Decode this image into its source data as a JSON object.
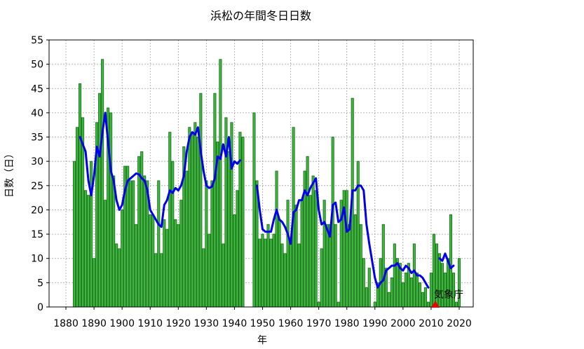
{
  "chart_data": {
    "type": "bar",
    "title": "浜松の年間冬日日数",
    "xlabel": "年",
    "ylabel": "日数（日）",
    "source_label": "気象庁",
    "xlim": [
      1874,
      2025
    ],
    "ylim": [
      0,
      55
    ],
    "x_ticks": [
      1880,
      1890,
      1900,
      1910,
      1920,
      1930,
      1940,
      1950,
      1960,
      1970,
      1980,
      1990,
      2000,
      2010,
      2020
    ],
    "y_ticks": [
      0,
      5,
      10,
      15,
      20,
      25,
      30,
      35,
      40,
      45,
      50,
      55
    ],
    "grid": true,
    "colors": {
      "bar": "#3fb53f",
      "bar_edge": "#166e16",
      "moving_average": "#0000ee",
      "source_marker": "#ee0000"
    },
    "series": [
      {
        "kind": "bar",
        "x": [
          1883,
          1884,
          1885,
          1886,
          1887,
          1888,
          1889,
          1890,
          1891,
          1892,
          1893,
          1894,
          1895,
          1896,
          1897,
          1898,
          1899,
          1900,
          1901,
          1902,
          1903,
          1904,
          1905,
          1906,
          1907,
          1908,
          1909,
          1910,
          1911,
          1912,
          1913,
          1914,
          1915,
          1916,
          1917,
          1918,
          1919,
          1920,
          1921,
          1922,
          1923,
          1924,
          1925,
          1926,
          1927,
          1928,
          1929,
          1930,
          1931,
          1932,
          1933,
          1934,
          1935,
          1936,
          1937,
          1938,
          1939,
          1940,
          1941,
          1942,
          1943,
          1944,
          1945,
          1946,
          1947,
          1948,
          1949,
          1950,
          1951,
          1952,
          1953,
          1954,
          1955,
          1956,
          1957,
          1958,
          1959,
          1960,
          1961,
          1962,
          1963,
          1964,
          1965,
          1966,
          1967,
          1968,
          1969,
          1970,
          1971,
          1972,
          1973,
          1974,
          1975,
          1976,
          1977,
          1978,
          1979,
          1980,
          1981,
          1982,
          1983,
          1984,
          1985,
          1986,
          1987,
          1988,
          1989,
          1990,
          1991,
          1992,
          1993,
          1994,
          1995,
          1996,
          1997,
          1998,
          1999,
          2000,
          2001,
          2002,
          2003,
          2004,
          2005,
          2006,
          2007,
          2008,
          2009,
          2010,
          2011,
          2012,
          2013,
          2014,
          2015,
          2016,
          2017,
          2018,
          2019,
          2020
        ],
        "values": [
          30,
          37,
          46,
          39,
          24,
          23,
          30,
          10,
          38,
          44,
          51,
          22,
          41,
          40,
          27,
          13,
          12,
          20,
          29,
          29,
          26,
          26,
          17,
          31,
          32,
          27,
          26,
          19,
          19,
          11,
          26,
          11,
          18,
          16,
          36,
          30,
          18,
          17,
          22,
          33,
          28,
          37,
          36,
          38,
          35,
          44,
          12,
          26,
          15,
          26,
          44,
          34,
          51,
          13,
          39,
          32,
          38,
          19,
          24,
          36,
          35,
          0,
          0,
          0,
          40,
          26,
          14,
          15,
          14,
          17,
          14,
          15,
          28,
          18,
          13,
          11,
          22,
          14,
          37,
          21,
          13,
          22,
          28,
          31,
          23,
          27,
          24,
          1,
          12,
          22,
          17,
          17,
          35,
          17,
          1,
          22,
          24,
          24,
          17,
          43,
          19,
          30,
          17,
          10,
          4,
          8,
          0,
          1,
          5,
          10,
          17,
          8,
          3,
          6,
          13,
          10,
          9,
          5,
          7,
          9,
          6,
          13,
          7,
          5,
          3,
          4,
          1,
          7,
          15,
          13,
          11,
          9,
          7,
          10,
          19,
          7,
          1,
          10
        ]
      },
      {
        "kind": "line",
        "x": [
          1885,
          1887,
          1888,
          1889,
          1890,
          1891,
          1892,
          1893,
          1894,
          1895,
          1896,
          1897,
          1898,
          1899,
          1900,
          1901,
          1902,
          1903,
          1904,
          1905,
          1906,
          1907,
          1908,
          1909,
          1910,
          1911,
          1912,
          1913,
          1914,
          1915,
          1916,
          1917,
          1918,
          1919,
          1920,
          1921,
          1922,
          1923,
          1924,
          1925,
          1926,
          1927,
          1928,
          1929,
          1930,
          1931,
          1932,
          1933,
          1934,
          1935,
          1936,
          1937,
          1938,
          1939,
          1940,
          1941,
          1942
        ],
        "values": [
          35,
          32,
          26,
          23,
          27,
          33,
          31,
          36,
          40,
          34,
          28,
          26,
          22,
          20,
          21,
          24,
          26,
          26.5,
          27,
          27.5,
          27.3,
          26.5,
          26,
          24,
          20,
          19,
          18,
          17,
          16.5,
          21,
          22,
          24,
          23.5,
          24.5,
          24,
          25,
          27,
          32,
          35,
          36,
          35.5,
          37,
          32,
          28,
          25,
          24.5,
          24.8,
          26.5,
          31,
          30.5,
          33.5,
          31,
          35,
          28.5,
          30,
          29.5,
          30.2
        ]
      },
      {
        "kind": "line",
        "x": [
          1948,
          1949,
          1950,
          1951,
          1952,
          1953,
          1954,
          1955,
          1956,
          1957,
          1958,
          1959,
          1960,
          1961,
          1962,
          1963,
          1964,
          1965,
          1966,
          1967,
          1968,
          1969,
          1970,
          1971,
          1972,
          1973,
          1974,
          1975,
          1976,
          1977,
          1978,
          1979,
          1980,
          1981,
          1982,
          1983,
          1984,
          1985,
          1986,
          1987,
          1988,
          1989,
          1990,
          1991,
          1992,
          1993,
          1994,
          1995,
          1996,
          1997,
          1998,
          1999,
          2000,
          2001,
          2002,
          2003,
          2004,
          2005,
          2006,
          2007,
          2008,
          2009
        ],
        "values": [
          25,
          20,
          16,
          15.5,
          15.5,
          15.5,
          18,
          20,
          18,
          17.5,
          16.5,
          15,
          13,
          19.5,
          20,
          22,
          22,
          24,
          23,
          24.5,
          25.5,
          26.5,
          20,
          17,
          17.5,
          16,
          14.5,
          21,
          21.5,
          17.5,
          18,
          20.5,
          15.5,
          16,
          24,
          24,
          25,
          25,
          24,
          17,
          13,
          9.5,
          6,
          4,
          5,
          5.5,
          7.5,
          8,
          8.5,
          8.5,
          9,
          8,
          7.5,
          8.5,
          8,
          7,
          7.5,
          6.5,
          6.5,
          6,
          5,
          4
        ]
      },
      {
        "kind": "line",
        "x": [
          2013,
          2014,
          2015,
          2016,
          2017,
          2018
        ],
        "values": [
          10,
          9.5,
          11,
          9.5,
          8,
          8.5
        ]
      }
    ]
  }
}
